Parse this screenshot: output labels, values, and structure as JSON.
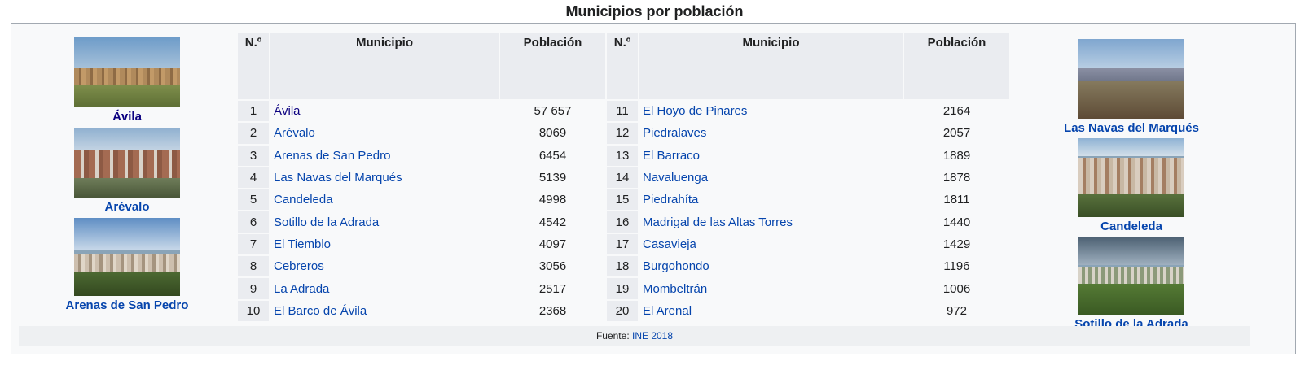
{
  "title": "Municipios por población",
  "headers": {
    "num": "N.º",
    "municipio": "Municipio",
    "poblacion": "Población"
  },
  "left_photos": [
    {
      "caption": "Ávila",
      "visited": true
    },
    {
      "caption": "Arévalo",
      "visited": false
    },
    {
      "caption": "Arenas de San Pedro",
      "visited": false
    }
  ],
  "right_photos": [
    {
      "caption": "Las Navas del Marqués",
      "visited": false
    },
    {
      "caption": "Candeleda",
      "visited": false
    },
    {
      "caption": "Sotillo de la Adrada",
      "visited": false
    }
  ],
  "rows": [
    {
      "n1": "1",
      "m1": "Ávila",
      "p1": "57 657",
      "n2": "11",
      "m2": "El Hoyo de Pinares",
      "p2": "2164"
    },
    {
      "n1": "2",
      "m1": "Arévalo",
      "p1": "8069",
      "n2": "12",
      "m2": "Piedralaves",
      "p2": "2057"
    },
    {
      "n1": "3",
      "m1": "Arenas de San Pedro",
      "p1": "6454",
      "n2": "13",
      "m2": "El Barraco",
      "p2": "1889"
    },
    {
      "n1": "4",
      "m1": "Las Navas del Marqués",
      "p1": "5139",
      "n2": "14",
      "m2": "Navaluenga",
      "p2": "1878"
    },
    {
      "n1": "5",
      "m1": "Candeleda",
      "p1": "4998",
      "n2": "15",
      "m2": "Piedrahíta",
      "p2": "1811"
    },
    {
      "n1": "6",
      "m1": "Sotillo de la Adrada",
      "p1": "4542",
      "n2": "16",
      "m2": "Madrigal de las Altas Torres",
      "p2": "1440"
    },
    {
      "n1": "7",
      "m1": "El Tiemblo",
      "p1": "4097",
      "n2": "17",
      "m2": "Casavieja",
      "p2": "1429"
    },
    {
      "n1": "8",
      "m1": "Cebreros",
      "p1": "3056",
      "n2": "18",
      "m2": "Burgohondo",
      "p2": "1196"
    },
    {
      "n1": "9",
      "m1": "La Adrada",
      "p1": "2517",
      "n2": "19",
      "m2": "Mombeltrán",
      "p2": "1006"
    },
    {
      "n1": "10",
      "m1": "El Barco de Ávila",
      "p1": "2368",
      "n2": "20",
      "m2": "El Arenal",
      "p2": "972"
    }
  ],
  "footer": {
    "label": "Fuente:",
    "link": "INE 2018"
  }
}
